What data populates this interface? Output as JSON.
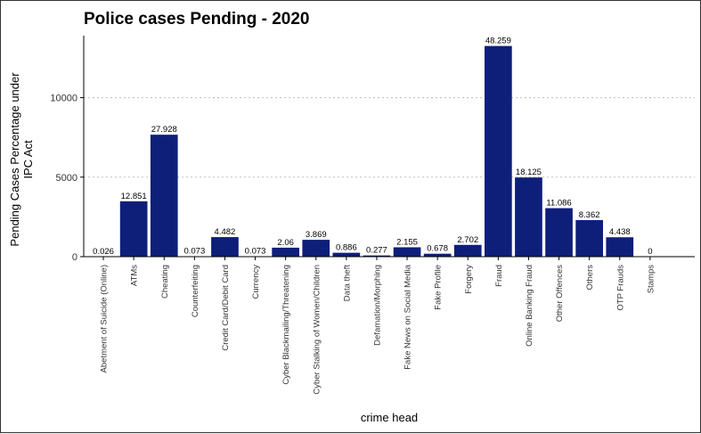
{
  "chart_data": {
    "type": "bar",
    "title": "Police cases Pending - 2020",
    "xlabel": "crime head",
    "ylabel_lines": [
      "Pending Cases Percentage under",
      "IPC Act"
    ],
    "ylim": [
      0,
      13900
    ],
    "yticks": [
      0,
      5000,
      10000
    ],
    "grid": "horizontal major, dotted",
    "bar_color": "#0e1f7a",
    "categories": [
      "Abetment of Suicide (Online)",
      "ATMs",
      "Cheating",
      "Counterfeiting",
      "Credit Card/Debit Card",
      "Currency",
      "Cyber Blackmailing/Threatening",
      "Cyber Stalking of Women/Children",
      "Data theft",
      "Defamation/Morphing",
      "Fake News on Social Media",
      "Fake Profile",
      "Forgery",
      "Fraud",
      "Online Banking Fraud",
      "Other Offences",
      "Others",
      "OTP Frauds",
      "Stamps"
    ],
    "values": [
      10,
      3480,
      7670,
      20,
      1230,
      20,
      565,
      1060,
      245,
      76,
      590,
      185,
      740,
      13250,
      4980,
      3050,
      2300,
      1220,
      0
    ],
    "data_labels": [
      "0.026",
      "12.851",
      "27.928",
      "0.073",
      "4.482",
      "0.073",
      "2.06",
      "3.869",
      "0.886",
      "0.277",
      "2.155",
      "0.678",
      "2.702",
      "48.259",
      "18.125",
      "11.086",
      "8.362",
      "4.438",
      "0"
    ]
  }
}
